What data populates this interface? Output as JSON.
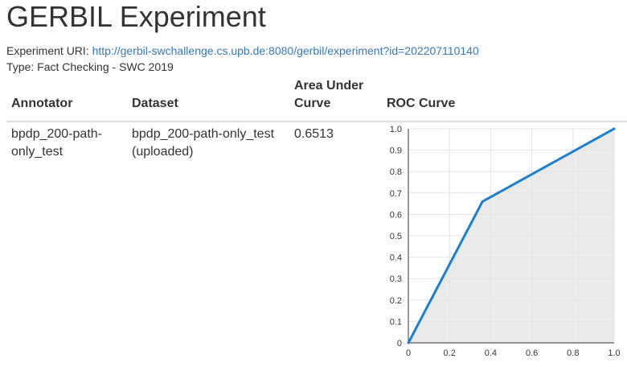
{
  "page": {
    "title": "GERBIL Experiment",
    "uri_label": "Experiment URI:",
    "uri": "http://gerbil-swchallenge.cs.upb.de:8080/gerbil/experiment?id=202207110140",
    "type_label": "Type:",
    "type_value": "Fact Checking - SWC 2019"
  },
  "table": {
    "headers": {
      "annotator": "Annotator",
      "dataset": "Dataset",
      "auc_line1": "Area Under",
      "auc_line2": "Curve",
      "roc": "ROC Curve"
    },
    "rows": [
      {
        "annotator": "bpdp_200-path-only_test",
        "dataset": "bpdp_200-path-only_test (uploaded)",
        "auc": "0.6513"
      }
    ]
  },
  "chart_data": {
    "type": "area",
    "x": [
      0,
      0.36,
      1
    ],
    "y": [
      0,
      0.66,
      1
    ],
    "xlim": [
      0,
      1
    ],
    "ylim": [
      0,
      1
    ],
    "x_ticks": [
      "0",
      "0.2",
      "0.4",
      "0.6",
      "0.8",
      "1.0"
    ],
    "y_ticks": [
      "0",
      "0.1",
      "0.2",
      "0.3",
      "0.4",
      "0.5",
      "0.6",
      "0.7",
      "0.8",
      "0.9",
      "1.0"
    ],
    "grid": true,
    "line_color": "#1a7fd4",
    "fill_color": "#e6e6e6"
  }
}
